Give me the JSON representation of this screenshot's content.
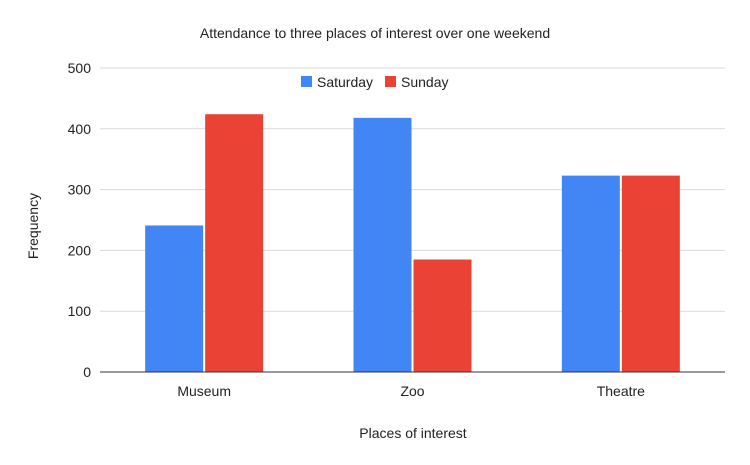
{
  "chart_data": {
    "type": "bar",
    "title": "Attendance to three places of interest over one weekend",
    "xlabel": "Places of interest",
    "ylabel": "Frequency",
    "categories": [
      "Museum",
      "Zoo",
      "Theatre"
    ],
    "series": [
      {
        "name": "Saturday",
        "values": [
          241,
          418,
          323
        ],
        "color": "#4285f4"
      },
      {
        "name": "Sunday",
        "values": [
          424,
          185,
          323
        ],
        "color": "#ea4335"
      }
    ],
    "ylim": [
      0,
      500
    ],
    "yticks": [
      0,
      100,
      200,
      300,
      400,
      500
    ],
    "grid": true,
    "legend_position": "top-center"
  }
}
